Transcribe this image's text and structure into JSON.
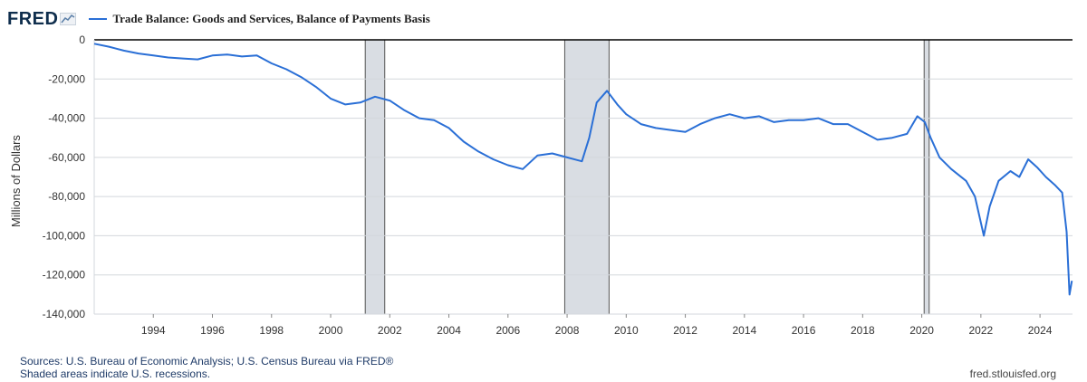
{
  "header": {
    "logo_text": "FRED",
    "logo_mark_icon": "line-chart-icon"
  },
  "chart_data": {
    "type": "line",
    "title": "Trade Balance: Goods and Services, Balance of Payments Basis",
    "ylabel": "Millions of Dollars",
    "xlabel": "",
    "ylim": [
      -140000,
      0
    ],
    "xlim": [
      1992.0,
      2025.1
    ],
    "y_ticks": [
      0,
      -20000,
      -40000,
      -60000,
      -80000,
      -100000,
      -120000,
      -140000
    ],
    "y_tick_labels": [
      "0",
      "-20,000",
      "-40,000",
      "-60,000",
      "-80,000",
      "-100,000",
      "-120,000",
      "-140,000"
    ],
    "x_ticks": [
      1994,
      1996,
      1998,
      2000,
      2002,
      2004,
      2006,
      2008,
      2010,
      2012,
      2014,
      2016,
      2018,
      2020,
      2022,
      2024
    ],
    "x_tick_labels": [
      "1994",
      "1996",
      "1998",
      "2000",
      "2002",
      "2004",
      "2006",
      "2008",
      "2010",
      "2012",
      "2014",
      "2016",
      "2018",
      "2020",
      "2022",
      "2024"
    ],
    "grid": true,
    "legend_position": "top-left",
    "line_color": "#2a6fd6",
    "recession_color": "#d9dde3",
    "recessions": [
      {
        "start": 2001.17,
        "end": 2001.83
      },
      {
        "start": 2007.92,
        "end": 2009.42
      },
      {
        "start": 2020.08,
        "end": 2020.25
      }
    ],
    "series": [
      {
        "name": "Trade Balance: Goods and Services, Balance of Payments Basis",
        "points": [
          [
            1992.0,
            -2000
          ],
          [
            1992.5,
            -3500
          ],
          [
            1993.0,
            -5500
          ],
          [
            1993.5,
            -7000
          ],
          [
            1994.0,
            -8000
          ],
          [
            1994.5,
            -9000
          ],
          [
            1995.0,
            -9500
          ],
          [
            1995.5,
            -10000
          ],
          [
            1996.0,
            -8000
          ],
          [
            1996.5,
            -7500
          ],
          [
            1997.0,
            -8500
          ],
          [
            1997.5,
            -8000
          ],
          [
            1998.0,
            -12000
          ],
          [
            1998.5,
            -15000
          ],
          [
            1999.0,
            -19000
          ],
          [
            1999.5,
            -24000
          ],
          [
            2000.0,
            -30000
          ],
          [
            2000.5,
            -33000
          ],
          [
            2001.0,
            -32000
          ],
          [
            2001.5,
            -29000
          ],
          [
            2002.0,
            -31000
          ],
          [
            2002.5,
            -36000
          ],
          [
            2003.0,
            -40000
          ],
          [
            2003.5,
            -41000
          ],
          [
            2004.0,
            -45000
          ],
          [
            2004.5,
            -52000
          ],
          [
            2005.0,
            -57000
          ],
          [
            2005.5,
            -61000
          ],
          [
            2006.0,
            -64000
          ],
          [
            2006.5,
            -66000
          ],
          [
            2007.0,
            -59000
          ],
          [
            2007.5,
            -58000
          ],
          [
            2008.0,
            -60000
          ],
          [
            2008.5,
            -62000
          ],
          [
            2008.75,
            -50000
          ],
          [
            2009.0,
            -32000
          ],
          [
            2009.35,
            -26000
          ],
          [
            2009.7,
            -33000
          ],
          [
            2010.0,
            -38000
          ],
          [
            2010.5,
            -43000
          ],
          [
            2011.0,
            -45000
          ],
          [
            2011.5,
            -46000
          ],
          [
            2012.0,
            -47000
          ],
          [
            2012.5,
            -43000
          ],
          [
            2013.0,
            -40000
          ],
          [
            2013.5,
            -38000
          ],
          [
            2014.0,
            -40000
          ],
          [
            2014.5,
            -39000
          ],
          [
            2015.0,
            -42000
          ],
          [
            2015.5,
            -41000
          ],
          [
            2016.0,
            -41000
          ],
          [
            2016.5,
            -40000
          ],
          [
            2017.0,
            -43000
          ],
          [
            2017.5,
            -43000
          ],
          [
            2018.0,
            -47000
          ],
          [
            2018.5,
            -51000
          ],
          [
            2019.0,
            -50000
          ],
          [
            2019.5,
            -48000
          ],
          [
            2019.85,
            -39000
          ],
          [
            2020.1,
            -42000
          ],
          [
            2020.3,
            -50000
          ],
          [
            2020.6,
            -60000
          ],
          [
            2021.0,
            -66000
          ],
          [
            2021.5,
            -72000
          ],
          [
            2021.8,
            -80000
          ],
          [
            2022.1,
            -100000
          ],
          [
            2022.3,
            -85000
          ],
          [
            2022.6,
            -72000
          ],
          [
            2023.0,
            -67000
          ],
          [
            2023.3,
            -70000
          ],
          [
            2023.6,
            -61000
          ],
          [
            2023.9,
            -65000
          ],
          [
            2024.2,
            -70000
          ],
          [
            2024.5,
            -74000
          ],
          [
            2024.75,
            -78000
          ],
          [
            2024.9,
            -98000
          ],
          [
            2025.0,
            -130000
          ],
          [
            2025.08,
            -123000
          ]
        ]
      }
    ]
  },
  "footer": {
    "sources": "Sources: U.S. Bureau of Economic Analysis; U.S. Census Bureau via FRED®",
    "note": "Shaded areas indicate U.S. recessions.",
    "site": "fred.stlouisfed.org"
  }
}
